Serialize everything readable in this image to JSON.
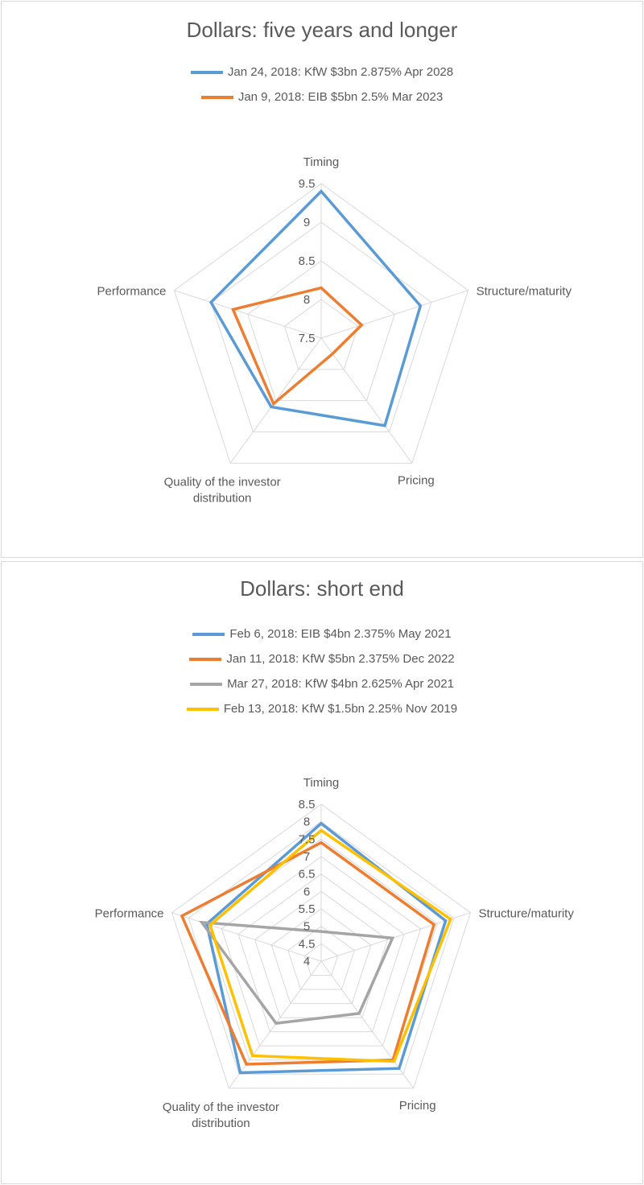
{
  "chart_data": [
    {
      "type": "radar",
      "title": "Dollars: five years and longer",
      "categories": [
        "Timing",
        "Structure/maturity",
        "Pricing",
        "Quality of the investor distribution",
        "Performance"
      ],
      "rlim": [
        7.5,
        9.5
      ],
      "ticks": [
        "7.5",
        "8",
        "8.5",
        "9",
        "9.5"
      ],
      "grid": true,
      "legend_placement": "top",
      "series": [
        {
          "name": "Jan 24, 2018: KfW $3bn 2.875% Apr 2028",
          "color": "#5b9bd5",
          "values": [
            9.4,
            8.85,
            8.9,
            8.6,
            9.0
          ]
        },
        {
          "name": "Jan 9, 2018: EIB $5bn 2.5% Mar 2023",
          "color": "#ed7d31",
          "values": [
            8.15,
            8.05,
            7.75,
            8.55,
            8.7
          ]
        }
      ]
    },
    {
      "type": "radar",
      "title": "Dollars: short end",
      "categories": [
        "Timing",
        "Structure/maturity",
        "Pricing",
        "Quality of the investor distribution",
        "Performance"
      ],
      "rlim": [
        4,
        8.5
      ],
      "ticks": [
        "4",
        "4.5",
        "5",
        "5.5",
        "6",
        "6.5",
        "7",
        "7.5",
        "8",
        "8.5"
      ],
      "grid": true,
      "legend_placement": "top",
      "series": [
        {
          "name": "Feb 6, 2018: EIB $4bn 2.375% May 2021",
          "color": "#5b9bd5",
          "values": [
            7.95,
            7.75,
            7.8,
            7.95,
            7.45
          ]
        },
        {
          "name": "Jan 11, 2018: KfW $5bn 2.375% Dec 2022",
          "color": "#ed7d31",
          "values": [
            7.4,
            7.4,
            7.5,
            7.65,
            8.2
          ]
        },
        {
          "name": "Mar 27, 2018: KfW $4bn 2.625% Apr 2021",
          "color": "#a5a5a5",
          "values": [
            4.85,
            6.15,
            5.85,
            6.2,
            7.6
          ]
        },
        {
          "name": "Feb 13, 2018: KfW $1.5bn 2.25% Nov 2019",
          "color": "#ffc000",
          "values": [
            7.75,
            7.9,
            7.55,
            7.35,
            7.35
          ]
        }
      ]
    }
  ]
}
